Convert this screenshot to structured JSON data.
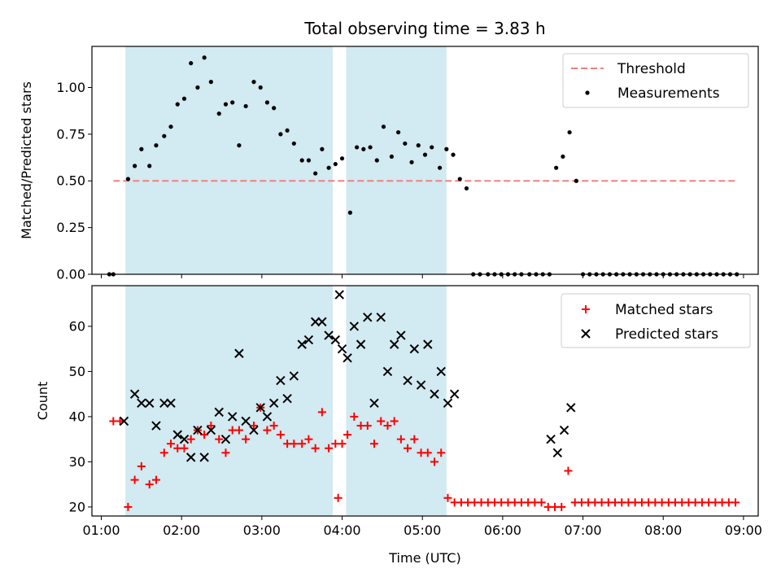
{
  "chart_data": {
    "type": "scatter",
    "title": "Total observing time = 3.83 h",
    "xlabel": "Time (UTC)",
    "x_tick_labels": [
      "01:00",
      "02:00",
      "03:00",
      "04:00",
      "05:00",
      "06:00",
      "07:00",
      "08:00",
      "09:00"
    ],
    "xlim": [
      "00:53",
      "09:11"
    ],
    "observing_windows": [
      [
        "01:18",
        "03:53"
      ],
      [
        "04:03",
        "05:18"
      ]
    ],
    "colors": {
      "window": "#add8e6",
      "threshold": "#f08080",
      "measurements": "#000000",
      "matched": "#ff0000",
      "predicted": "#000000"
    },
    "top": {
      "ylabel": "Matched/Predicted stars",
      "ylim": [
        0,
        1.22
      ],
      "yticks": [
        "0.00",
        "0.25",
        "0.50",
        "0.75",
        "1.00"
      ],
      "legend": [
        "Threshold",
        "Measurements"
      ],
      "threshold": {
        "value": 0.5,
        "x_range": [
          "01:09",
          "08:55"
        ]
      },
      "measurements": [
        [
          "01:06",
          0.0
        ],
        [
          "01:09",
          0.0
        ],
        [
          "01:20",
          0.51
        ],
        [
          "01:25",
          0.58
        ],
        [
          "01:30",
          0.67
        ],
        [
          "01:36",
          0.58
        ],
        [
          "01:41",
          0.69
        ],
        [
          "01:47",
          0.74
        ],
        [
          "01:52",
          0.79
        ],
        [
          "01:57",
          0.91
        ],
        [
          "02:02",
          0.94
        ],
        [
          "02:07",
          1.13
        ],
        [
          "02:12",
          1.0
        ],
        [
          "02:17",
          1.16
        ],
        [
          "02:22",
          1.03
        ],
        [
          "02:28",
          0.86
        ],
        [
          "02:33",
          0.91
        ],
        [
          "02:38",
          0.92
        ],
        [
          "02:43",
          0.69
        ],
        [
          "02:48",
          0.9
        ],
        [
          "02:54",
          1.03
        ],
        [
          "02:59",
          1.0
        ],
        [
          "03:04",
          0.92
        ],
        [
          "03:09",
          0.89
        ],
        [
          "03:14",
          0.75
        ],
        [
          "03:19",
          0.77
        ],
        [
          "03:24",
          0.7
        ],
        [
          "03:30",
          0.61
        ],
        [
          "03:35",
          0.61
        ],
        [
          "03:40",
          0.54
        ],
        [
          "03:45",
          0.67
        ],
        [
          "03:50",
          0.57
        ],
        [
          "03:55",
          0.59
        ],
        [
          "04:00",
          0.62
        ],
        [
          "04:06",
          0.33
        ],
        [
          "04:11",
          0.68
        ],
        [
          "04:16",
          0.67
        ],
        [
          "04:21",
          0.68
        ],
        [
          "04:26",
          0.61
        ],
        [
          "04:31",
          0.79
        ],
        [
          "04:37",
          0.63
        ],
        [
          "04:42",
          0.76
        ],
        [
          "04:47",
          0.7
        ],
        [
          "04:52",
          0.6
        ],
        [
          "04:57",
          0.69
        ],
        [
          "05:02",
          0.64
        ],
        [
          "05:07",
          0.68
        ],
        [
          "05:13",
          0.57
        ],
        [
          "05:18",
          0.67
        ],
        [
          "05:23",
          0.64
        ],
        [
          "05:28",
          0.51
        ],
        [
          "05:33",
          0.46
        ],
        [
          "05:38",
          0.0
        ],
        [
          "05:43",
          0.0
        ],
        [
          "05:49",
          0.0
        ],
        [
          "05:54",
          0.0
        ],
        [
          "05:59",
          0.0
        ],
        [
          "06:04",
          0.0
        ],
        [
          "06:09",
          0.0
        ],
        [
          "06:14",
          0.0
        ],
        [
          "06:20",
          0.0
        ],
        [
          "06:25",
          0.0
        ],
        [
          "06:30",
          0.0
        ],
        [
          "06:35",
          0.0
        ],
        [
          "06:40",
          0.57
        ],
        [
          "06:45",
          0.63
        ],
        [
          "06:50",
          0.76
        ],
        [
          "06:55",
          0.5
        ],
        [
          "07:00",
          0.0
        ],
        [
          "07:05",
          0.0
        ],
        [
          "07:10",
          0.0
        ],
        [
          "07:15",
          0.0
        ],
        [
          "07:20",
          0.0
        ],
        [
          "07:25",
          0.0
        ],
        [
          "07:30",
          0.0
        ],
        [
          "07:35",
          0.0
        ],
        [
          "07:40",
          0.0
        ],
        [
          "07:45",
          0.0
        ],
        [
          "07:50",
          0.0
        ],
        [
          "07:55",
          0.0
        ],
        [
          "08:00",
          0.0
        ],
        [
          "08:05",
          0.0
        ],
        [
          "08:10",
          0.0
        ],
        [
          "08:15",
          0.0
        ],
        [
          "08:20",
          0.0
        ],
        [
          "08:25",
          0.0
        ],
        [
          "08:30",
          0.0
        ],
        [
          "08:35",
          0.0
        ],
        [
          "08:40",
          0.0
        ],
        [
          "08:45",
          0.0
        ],
        [
          "08:50",
          0.0
        ],
        [
          "08:55",
          0.0
        ]
      ]
    },
    "bottom": {
      "ylabel": "Count",
      "ylim": [
        18,
        69
      ],
      "yticks": [
        "20",
        "30",
        "40",
        "50",
        "60"
      ],
      "legend": [
        "Matched stars",
        "Predicted stars"
      ],
      "matched": [
        [
          "01:09",
          39
        ],
        [
          "01:14",
          39
        ],
        [
          "01:20",
          20
        ],
        [
          "01:25",
          26
        ],
        [
          "01:30",
          29
        ],
        [
          "01:36",
          25
        ],
        [
          "01:41",
          26
        ],
        [
          "01:47",
          32
        ],
        [
          "01:52",
          34
        ],
        [
          "01:57",
          33
        ],
        [
          "02:02",
          33
        ],
        [
          "02:07",
          35
        ],
        [
          "02:12",
          37
        ],
        [
          "02:17",
          36
        ],
        [
          "02:22",
          38
        ],
        [
          "02:28",
          35
        ],
        [
          "02:33",
          32
        ],
        [
          "02:38",
          37
        ],
        [
          "02:43",
          37
        ],
        [
          "02:48",
          35
        ],
        [
          "02:54",
          38
        ],
        [
          "02:59",
          42
        ],
        [
          "03:04",
          37
        ],
        [
          "03:09",
          38
        ],
        [
          "03:14",
          36
        ],
        [
          "03:19",
          34
        ],
        [
          "03:24",
          34
        ],
        [
          "03:30",
          34
        ],
        [
          "03:35",
          35
        ],
        [
          "03:40",
          33
        ],
        [
          "03:45",
          41
        ],
        [
          "03:50",
          33
        ],
        [
          "03:55",
          34
        ],
        [
          "04:00",
          34
        ],
        [
          "03:57",
          22
        ],
        [
          "04:04",
          36
        ],
        [
          "04:09",
          40
        ],
        [
          "04:14",
          38
        ],
        [
          "04:19",
          38
        ],
        [
          "04:24",
          34
        ],
        [
          "04:29",
          39
        ],
        [
          "04:34",
          38
        ],
        [
          "04:39",
          39
        ],
        [
          "04:44",
          35
        ],
        [
          "04:49",
          33
        ],
        [
          "04:54",
          35
        ],
        [
          "04:59",
          32
        ],
        [
          "05:04",
          32
        ],
        [
          "05:09",
          30
        ],
        [
          "05:14",
          32
        ],
        [
          "05:19",
          22
        ],
        [
          "05:24",
          21
        ],
        [
          "05:29",
          21
        ],
        [
          "05:34",
          21
        ],
        [
          "05:39",
          21
        ],
        [
          "05:44",
          21
        ],
        [
          "05:49",
          21
        ],
        [
          "05:54",
          21
        ],
        [
          "05:59",
          21
        ],
        [
          "06:04",
          21
        ],
        [
          "06:09",
          21
        ],
        [
          "06:14",
          21
        ],
        [
          "06:19",
          21
        ],
        [
          "06:24",
          21
        ],
        [
          "06:29",
          21
        ],
        [
          "06:34",
          20
        ],
        [
          "06:39",
          20
        ],
        [
          "06:44",
          20
        ],
        [
          "06:49",
          28
        ],
        [
          "06:54",
          21
        ],
        [
          "06:59",
          21
        ],
        [
          "07:04",
          21
        ],
        [
          "07:09",
          21
        ],
        [
          "07:14",
          21
        ],
        [
          "07:19",
          21
        ],
        [
          "07:24",
          21
        ],
        [
          "07:29",
          21
        ],
        [
          "07:34",
          21
        ],
        [
          "07:39",
          21
        ],
        [
          "07:44",
          21
        ],
        [
          "07:49",
          21
        ],
        [
          "07:54",
          21
        ],
        [
          "07:59",
          21
        ],
        [
          "08:04",
          21
        ],
        [
          "08:09",
          21
        ],
        [
          "08:14",
          21
        ],
        [
          "08:19",
          21
        ],
        [
          "08:24",
          21
        ],
        [
          "08:29",
          21
        ],
        [
          "08:34",
          21
        ],
        [
          "08:39",
          21
        ],
        [
          "08:44",
          21
        ],
        [
          "08:49",
          21
        ],
        [
          "08:54",
          21
        ]
      ],
      "predicted": [
        [
          "01:17",
          39
        ],
        [
          "01:25",
          45
        ],
        [
          "01:30",
          43
        ],
        [
          "01:36",
          43
        ],
        [
          "01:41",
          38
        ],
        [
          "01:47",
          43
        ],
        [
          "01:52",
          43
        ],
        [
          "01:57",
          36
        ],
        [
          "02:02",
          35
        ],
        [
          "02:07",
          31
        ],
        [
          "02:12",
          37
        ],
        [
          "02:17",
          31
        ],
        [
          "02:22",
          37
        ],
        [
          "02:28",
          41
        ],
        [
          "02:33",
          35
        ],
        [
          "02:38",
          40
        ],
        [
          "02:43",
          54
        ],
        [
          "02:48",
          39
        ],
        [
          "02:54",
          37
        ],
        [
          "02:59",
          42
        ],
        [
          "03:04",
          40
        ],
        [
          "03:09",
          43
        ],
        [
          "03:14",
          48
        ],
        [
          "03:19",
          44
        ],
        [
          "03:24",
          49
        ],
        [
          "03:30",
          56
        ],
        [
          "03:35",
          57
        ],
        [
          "03:40",
          61
        ],
        [
          "03:45",
          61
        ],
        [
          "03:50",
          58
        ],
        [
          "03:55",
          57
        ],
        [
          "04:00",
          55
        ],
        [
          "03:58",
          67
        ],
        [
          "04:04",
          53
        ],
        [
          "04:09",
          60
        ],
        [
          "04:14",
          56
        ],
        [
          "04:19",
          62
        ],
        [
          "04:24",
          43
        ],
        [
          "04:29",
          62
        ],
        [
          "04:34",
          50
        ],
        [
          "04:39",
          56
        ],
        [
          "04:44",
          58
        ],
        [
          "04:49",
          48
        ],
        [
          "04:54",
          55
        ],
        [
          "04:59",
          47
        ],
        [
          "05:04",
          56
        ],
        [
          "05:09",
          45
        ],
        [
          "05:14",
          50
        ],
        [
          "05:19",
          43
        ],
        [
          "05:24",
          45
        ],
        [
          "06:36",
          35
        ],
        [
          "06:41",
          32
        ],
        [
          "06:46",
          37
        ],
        [
          "06:51",
          42
        ]
      ]
    }
  }
}
